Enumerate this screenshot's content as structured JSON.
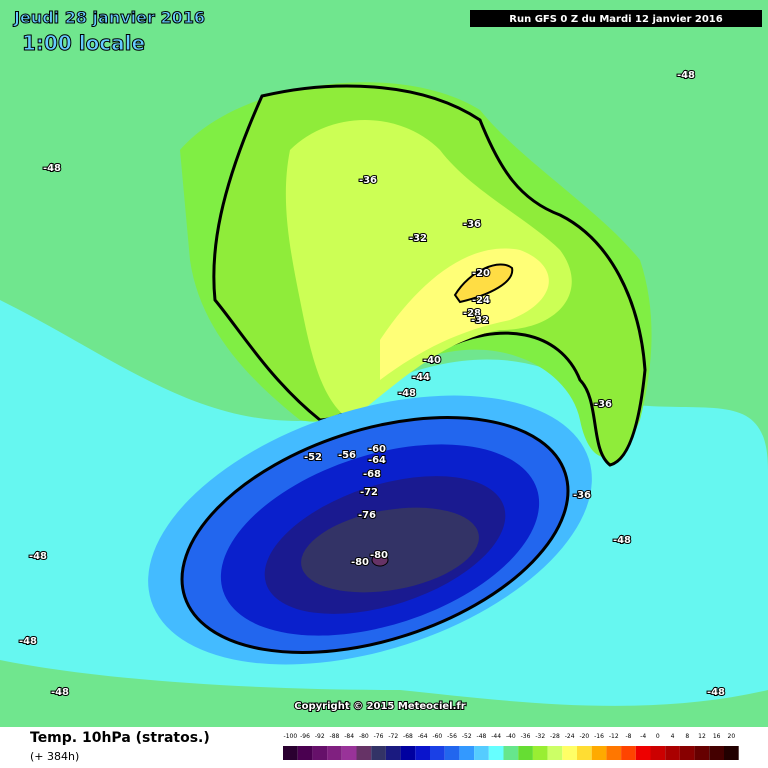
{
  "header": {
    "date": "Jeudi 28 janvier 2016",
    "time": "1:00 locale",
    "run": "Run GFS 0 Z du Mardi 12 janvier 2016"
  },
  "map": {
    "copyright": "Copyright © 2015 Meteociel.fr",
    "contour_labels": [
      "-48",
      "-48",
      "-36",
      "-36",
      "-32",
      "-20",
      "-24",
      "-28",
      "-32",
      "-40",
      "-44",
      "-48",
      "-52",
      "-56",
      "-60",
      "-64",
      "-68",
      "-72",
      "-76",
      "-80",
      "-80",
      "-36",
      "-36",
      "-48",
      "-48",
      "-48",
      "-48",
      "-48"
    ]
  },
  "footer": {
    "title": "Temp. 10hPa (stratos.)",
    "subtitle": "(+ 384h)"
  },
  "legend": [
    {
      "label": "-100",
      "color": "#2a0030"
    },
    {
      "label": "-96",
      "color": "#4a0050"
    },
    {
      "label": "-92",
      "color": "#66106a"
    },
    {
      "label": "-88",
      "color": "#802080"
    },
    {
      "label": "-84",
      "color": "#993399"
    },
    {
      "label": "-80",
      "color": "#663366"
    },
    {
      "label": "-76",
      "color": "#333366"
    },
    {
      "label": "-72",
      "color": "#1a1a80"
    },
    {
      "label": "-68",
      "color": "#0000a0"
    },
    {
      "label": "-64",
      "color": "#0a14cc"
    },
    {
      "label": "-60",
      "color": "#1a40e6"
    },
    {
      "label": "-56",
      "color": "#2266ee"
    },
    {
      "label": "-52",
      "color": "#3399ff"
    },
    {
      "label": "-48",
      "color": "#55ccff"
    },
    {
      "label": "-44",
      "color": "#66ffff"
    },
    {
      "label": "-40",
      "color": "#66e68c"
    },
    {
      "label": "-36",
      "color": "#66dd33"
    },
    {
      "label": "-32",
      "color": "#99ee33"
    },
    {
      "label": "-28",
      "color": "#ccff66"
    },
    {
      "label": "-24",
      "color": "#ffff66"
    },
    {
      "label": "-20",
      "color": "#ffdd33"
    },
    {
      "label": "-16",
      "color": "#ffaa00"
    },
    {
      "label": "-12",
      "color": "#ff7700"
    },
    {
      "label": "-8",
      "color": "#ff4400"
    },
    {
      "label": "-4",
      "color": "#ee0000"
    },
    {
      "label": "0",
      "color": "#cc0000"
    },
    {
      "label": "4",
      "color": "#aa0000"
    },
    {
      "label": "8",
      "color": "#880000"
    },
    {
      "label": "12",
      "color": "#660000"
    },
    {
      "label": "16",
      "color": "#440000"
    },
    {
      "label": "20",
      "color": "#220000"
    }
  ]
}
